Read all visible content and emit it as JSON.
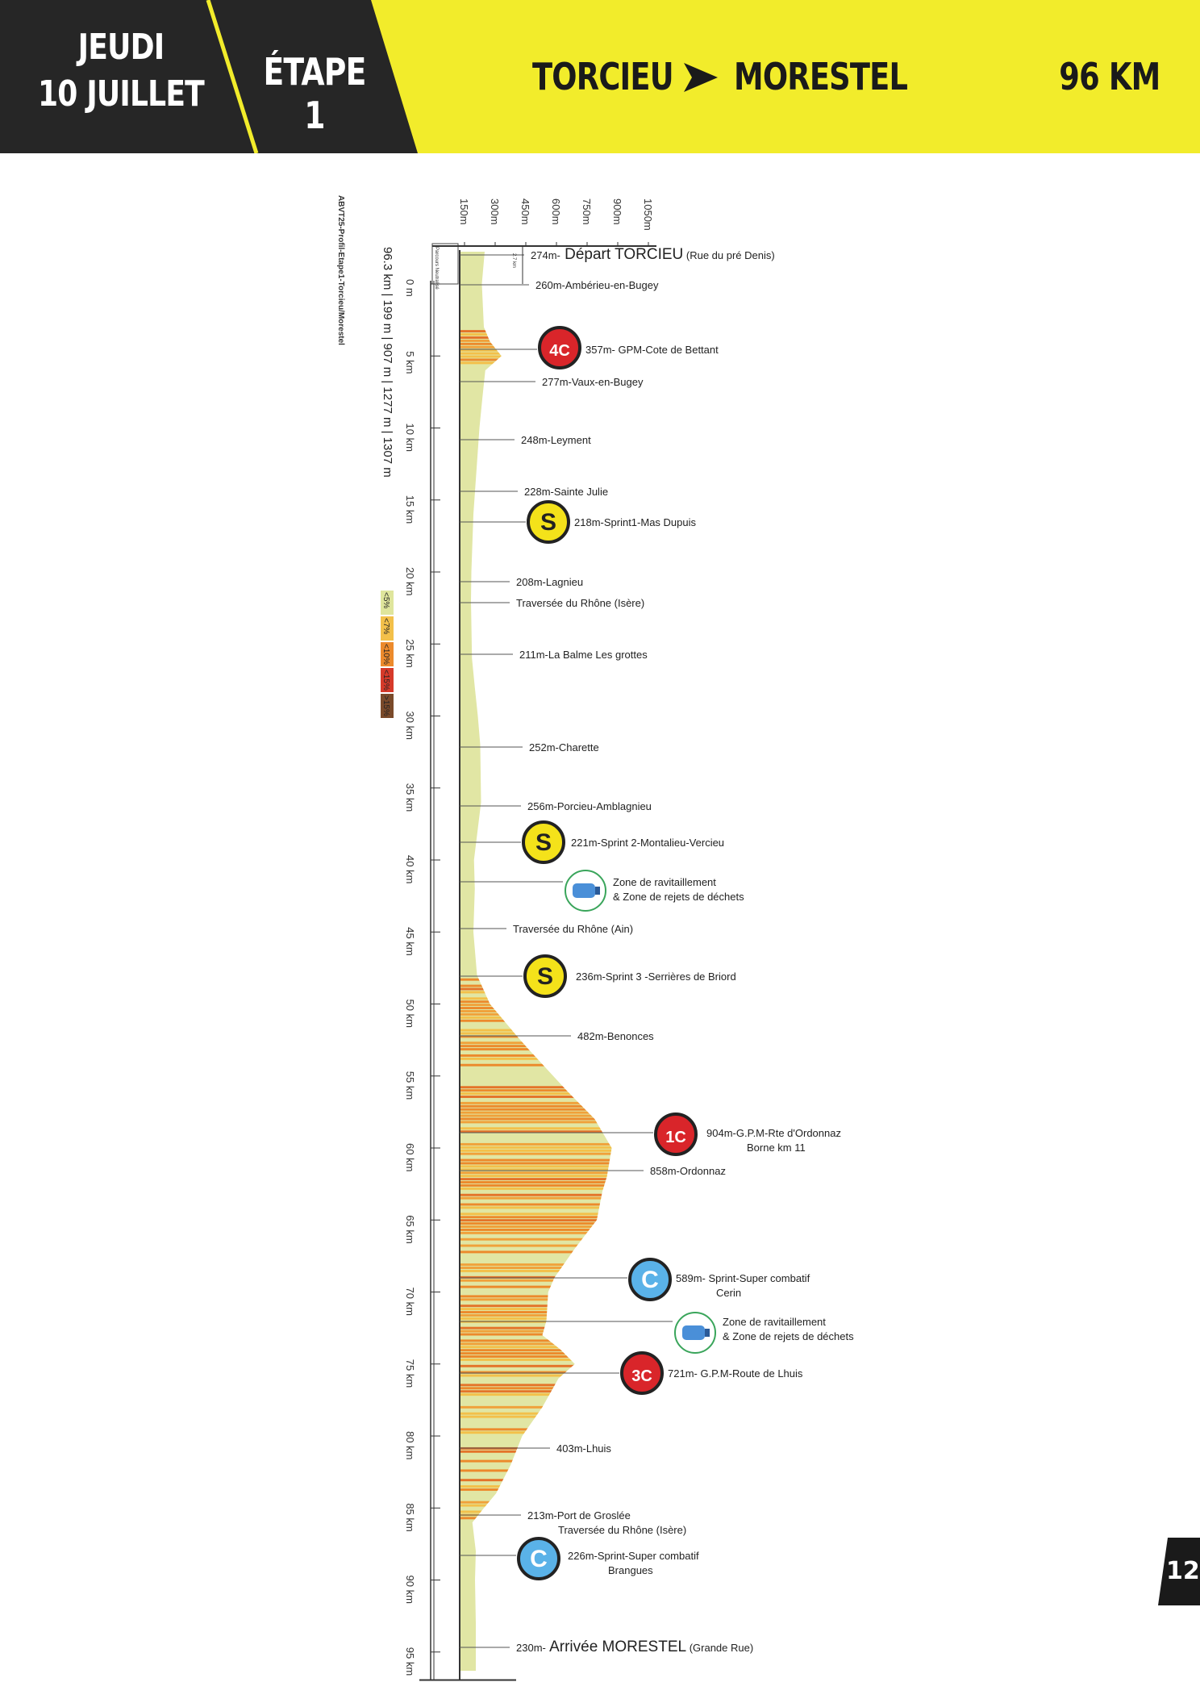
{
  "header": {
    "day": "JEUDI",
    "date": "10 JUILLET",
    "stage": "ÉTAPE 1",
    "from": "TORCIEU",
    "to": "MORESTEL",
    "distance": "96 KM",
    "colors": {
      "dark": "#262626",
      "accent": "#f2ec2b"
    }
  },
  "page_number": "12",
  "profile": {
    "file_label": "ABVT25-Profil-Etape1-Torcieu/Morestel",
    "stats": "96.3 km | 199 m | 907 m | 1277 m | 1307 m",
    "neutral_label": "Parcours Neutralisé",
    "neutral_distance": "2.7 km",
    "altitude_ticks": [
      "150m",
      "300m",
      "450m",
      "600m",
      "750m",
      "900m",
      "1050m"
    ],
    "km_ticks": [
      "0 m",
      "5 km",
      "10 km",
      "15 km",
      "20 km",
      "25 km",
      "30 km",
      "35 km",
      "40 km",
      "45 km",
      "50 km",
      "55 km",
      "60 km",
      "65 km",
      "70 km",
      "75 km",
      "80 km",
      "85 km",
      "90 km",
      "95 km"
    ],
    "gradient_legend": [
      {
        "label": "<5%",
        "color": "#dfe59c"
      },
      {
        "label": "<7%",
        "color": "#f3c04a"
      },
      {
        "label": "<10%",
        "color": "#ec8a2c"
      },
      {
        "label": "<15%",
        "color": "#d63a2a"
      },
      {
        "label": ">15%",
        "color": "#7a4a2a"
      }
    ],
    "waypoints": [
      {
        "label": "274m-",
        "big": "Départ TORCIEU",
        "suffix": " (Rue du pré Denis)"
      },
      {
        "label": "260m-Ambérieu-en-Bugey"
      },
      {
        "label": "357m- GPM-Cote de Bettant",
        "icon": "gpm-4c-icon",
        "badge": "4C"
      },
      {
        "label": "277m-Vaux-en-Bugey"
      },
      {
        "label": "248m-Leyment"
      },
      {
        "label": "228m-Sainte Julie"
      },
      {
        "label": "218m-Sprint1-Mas Dupuis",
        "icon": "sprint-icon",
        "badge": "S"
      },
      {
        "label": "208m-Lagnieu"
      },
      {
        "label": "Traversée du Rhône (Isère)"
      },
      {
        "label": "211m-La Balme Les grottes"
      },
      {
        "label": "252m-Charette"
      },
      {
        "label": "256m-Porcieu-Amblagnieu"
      },
      {
        "label": "221m-Sprint 2-Montalieu-Vercieu",
        "icon": "sprint-icon",
        "badge": "S"
      },
      {
        "label": "Zone de ravitaillement",
        "label2": "& Zone de rejets de déchets",
        "icon": "feed-zone-icon"
      },
      {
        "label": "Traversée du Rhône (Ain)"
      },
      {
        "label": "236m-Sprint 3 -Serrières de Briord",
        "icon": "sprint-icon",
        "badge": "S"
      },
      {
        "label": "482m-Benonces"
      },
      {
        "label": "904m-G.P.M-Rte d'Ordonnaz",
        "label2": "Borne km 11",
        "icon": "gpm-1c-icon",
        "badge": "1C"
      },
      {
        "label": "858m-Ordonnaz"
      },
      {
        "label": "589m- Sprint-Super combatif",
        "label2": "Cerin",
        "icon": "combativity-icon",
        "badge": "C"
      },
      {
        "label": "Zone de ravitaillement",
        "label2": "& Zone de rejets de déchets",
        "icon": "feed-zone-icon"
      },
      {
        "label": "721m- G.P.M-Route de Lhuis",
        "icon": "gpm-3c-icon",
        "badge": "3C"
      },
      {
        "label": "403m-Lhuis"
      },
      {
        "label": "213m-Port de Groslée",
        "label2": "Traversée du Rhône (Isère)"
      },
      {
        "label": "226m-Sprint-Super combatif",
        "label2": "Brangues",
        "icon": "combativity-icon",
        "badge": "C"
      },
      {
        "label": "230m-",
        "big": "Arrivée MORESTEL",
        "suffix": " (Grande Rue)"
      }
    ]
  }
}
